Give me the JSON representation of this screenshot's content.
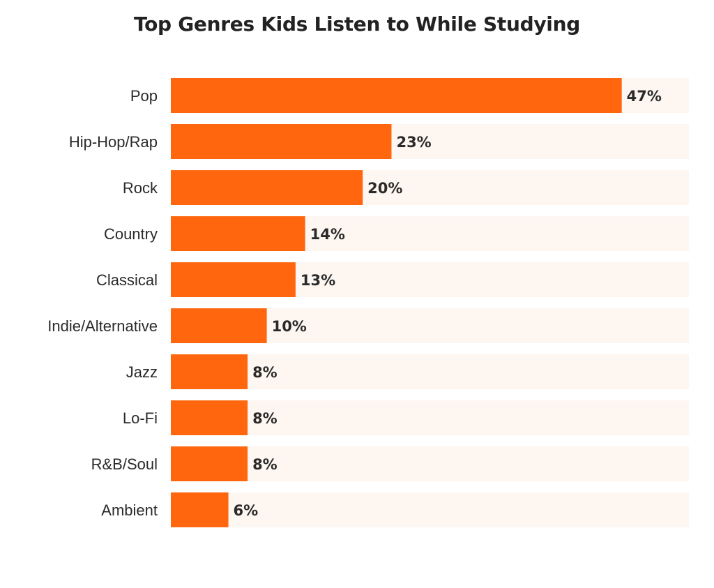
{
  "chart_data": {
    "type": "bar",
    "orientation": "horizontal",
    "title": "Top Genres Kids Listen to While Studying",
    "xlabel": "",
    "ylabel": "",
    "xlim": [
      0,
      54
    ],
    "categories": [
      "Pop",
      "Hip-Hop/Rap",
      "Rock",
      "Country",
      "Classical",
      "Indie/Alternative",
      "Jazz",
      "Lo-Fi",
      "R&B/Soul",
      "Ambient"
    ],
    "values": [
      47,
      23,
      20,
      14,
      13,
      10,
      8,
      8,
      8,
      6
    ],
    "value_labels": [
      "47%",
      "23%",
      "20%",
      "14%",
      "13%",
      "10%",
      "8%",
      "8%",
      "8%",
      "6%"
    ],
    "grid": false,
    "legend": "none",
    "colors": {
      "bar": "#ff660d",
      "track": "#fdf6f1",
      "text": "#2a2a2a"
    }
  }
}
